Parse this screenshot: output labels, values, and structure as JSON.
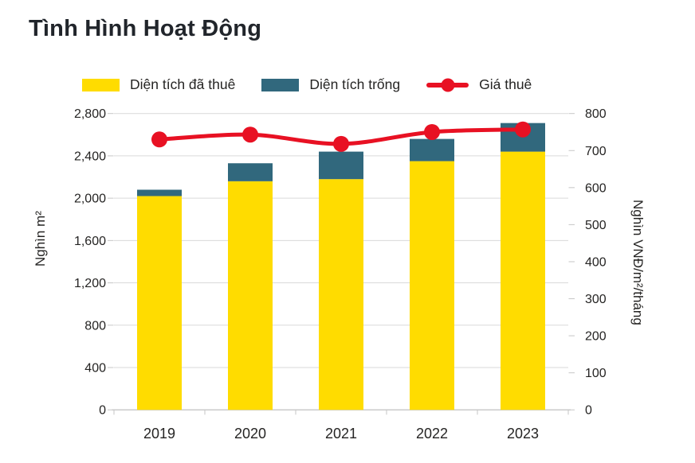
{
  "chart_data": {
    "type": "bar",
    "subtype": "stacked-bars-with-line-overlay",
    "title": "Tình Hình Hoạt Động",
    "categories": [
      "2019",
      "2020",
      "2021",
      "2022",
      "2023"
    ],
    "series": [
      {
        "key": "leased",
        "name": "Diện tích đã thuê",
        "color": "#FFDC00",
        "axis": "left",
        "values": [
          2020,
          2160,
          2180,
          2350,
          2440
        ]
      },
      {
        "key": "vacant",
        "name": "Diện tích trống",
        "color": "#31687D",
        "axis": "left",
        "values": [
          60,
          170,
          260,
          210,
          270
        ]
      }
    ],
    "line": {
      "key": "rent",
      "name": "Giá thuê",
      "color": "#E81123",
      "axis": "right",
      "values": [
        730,
        743,
        718,
        750,
        757
      ]
    },
    "ylabel_left": "Nghìn m²",
    "ylabel_right": "Nghìn VNĐ/m²/tháng",
    "ylim_left": [
      0,
      2800
    ],
    "ytick_step_left": 400,
    "ylim_right": [
      0,
      800
    ],
    "ytick_step_right": 100,
    "grid": "horizontal",
    "legend_position": "top",
    "text_color": "#252423"
  }
}
